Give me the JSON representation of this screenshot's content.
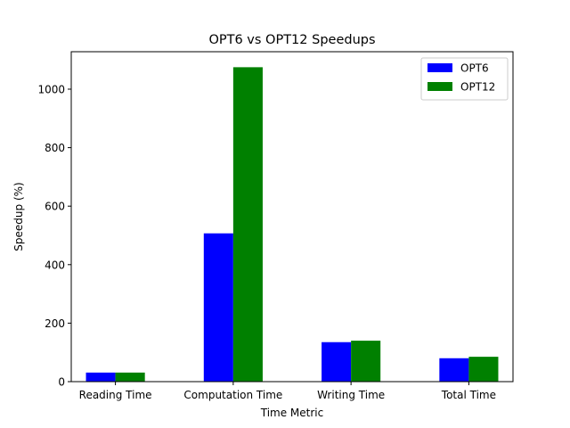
{
  "chart_data": {
    "type": "bar",
    "title": "OPT6 vs OPT12 Speedups",
    "xlabel": "Time Metric",
    "ylabel": "Speedup (%)",
    "categories": [
      "Reading Time",
      "Computation Time",
      "Writing Time",
      "Total Time"
    ],
    "series": [
      {
        "name": "OPT6",
        "color": "#0000ff",
        "values": [
          31,
          507,
          135,
          80
        ]
      },
      {
        "name": "OPT12",
        "color": "#008000",
        "values": [
          31,
          1075,
          140,
          85
        ]
      }
    ],
    "ylim": [
      0,
      1128
    ],
    "yticks": [
      0,
      200,
      400,
      600,
      800,
      1000
    ],
    "grid": false,
    "legend": "top-right"
  }
}
